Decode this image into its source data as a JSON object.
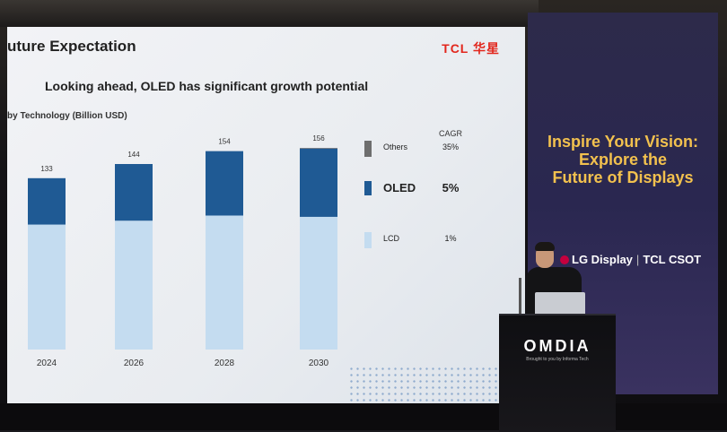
{
  "screen": {
    "title": "uture Expectation",
    "brand": "TCL 华星",
    "subtitle": "Looking ahead, OLED has significant growth potential",
    "unit_label": "by Technology (Billion USD)"
  },
  "chart_data": {
    "type": "bar",
    "categories": [
      "2024",
      "2026",
      "2028",
      "2030"
    ],
    "totals": [
      133,
      144,
      154,
      156
    ],
    "series": [
      {
        "name": "LCD",
        "values": [
          97,
          100,
          104,
          103
        ],
        "color": "#c4dcf0"
      },
      {
        "name": "OLED",
        "values": [
          36,
          44,
          50,
          53
        ],
        "color": "#1f5a94"
      },
      {
        "name": "Others",
        "values": [
          0,
          0,
          0,
          0.5
        ],
        "color": "#6e6e6e"
      }
    ],
    "ylim": [
      0,
      160
    ],
    "legend": {
      "header": "CAGR",
      "items": [
        {
          "name": "Others",
          "cagr": "35%",
          "color": "#6e6e6e"
        },
        {
          "name": "OLED",
          "cagr": "5%",
          "color": "#1f5a94"
        },
        {
          "name": "LCD",
          "cagr": "1%",
          "color": "#c4dcf0"
        }
      ]
    }
  },
  "banner": {
    "line1": "Inspire Your Vision:",
    "line2": "Explore the",
    "line3": "Future of Displays",
    "sponsor1": "LG Display",
    "sponsor2": "TCL CSOT"
  },
  "podium": {
    "logo": "OMDIA",
    "tagline": "Brought to you by Informa Tech"
  }
}
